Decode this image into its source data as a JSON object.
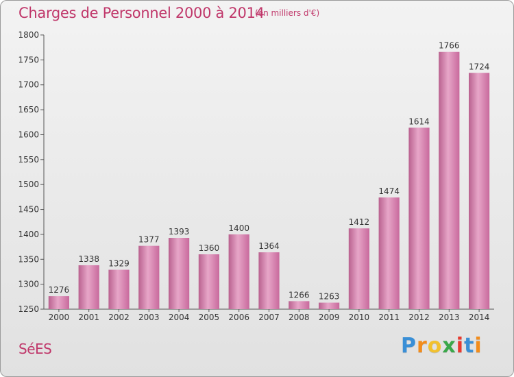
{
  "title": "Charges de Personnel 2000 à 2014",
  "subtitle": "(en milliers d'€)",
  "city": "SéES",
  "logo": {
    "letters": [
      "P",
      "r",
      "o",
      "x",
      "i",
      "t",
      "i"
    ],
    "colors": [
      "#3a8fd6",
      "#f28c1b",
      "#f2c12e",
      "#3aa84a",
      "#e8392f",
      "#3a8fd6",
      "#f28c1b"
    ]
  },
  "chart_data": {
    "type": "bar",
    "categories": [
      "2000",
      "2001",
      "2002",
      "2003",
      "2004",
      "2005",
      "2006",
      "2007",
      "2008",
      "2009",
      "2010",
      "2011",
      "2012",
      "2013",
      "2014"
    ],
    "values": [
      1276,
      1338,
      1329,
      1377,
      1393,
      1360,
      1400,
      1364,
      1266,
      1263,
      1412,
      1474,
      1614,
      1766,
      1724
    ],
    "ylim": [
      1250,
      1800
    ],
    "yticks": [
      1250,
      1300,
      1350,
      1400,
      1450,
      1500,
      1550,
      1600,
      1650,
      1700,
      1750,
      1800
    ],
    "grid": false,
    "bar_color": "#d37aaa"
  }
}
